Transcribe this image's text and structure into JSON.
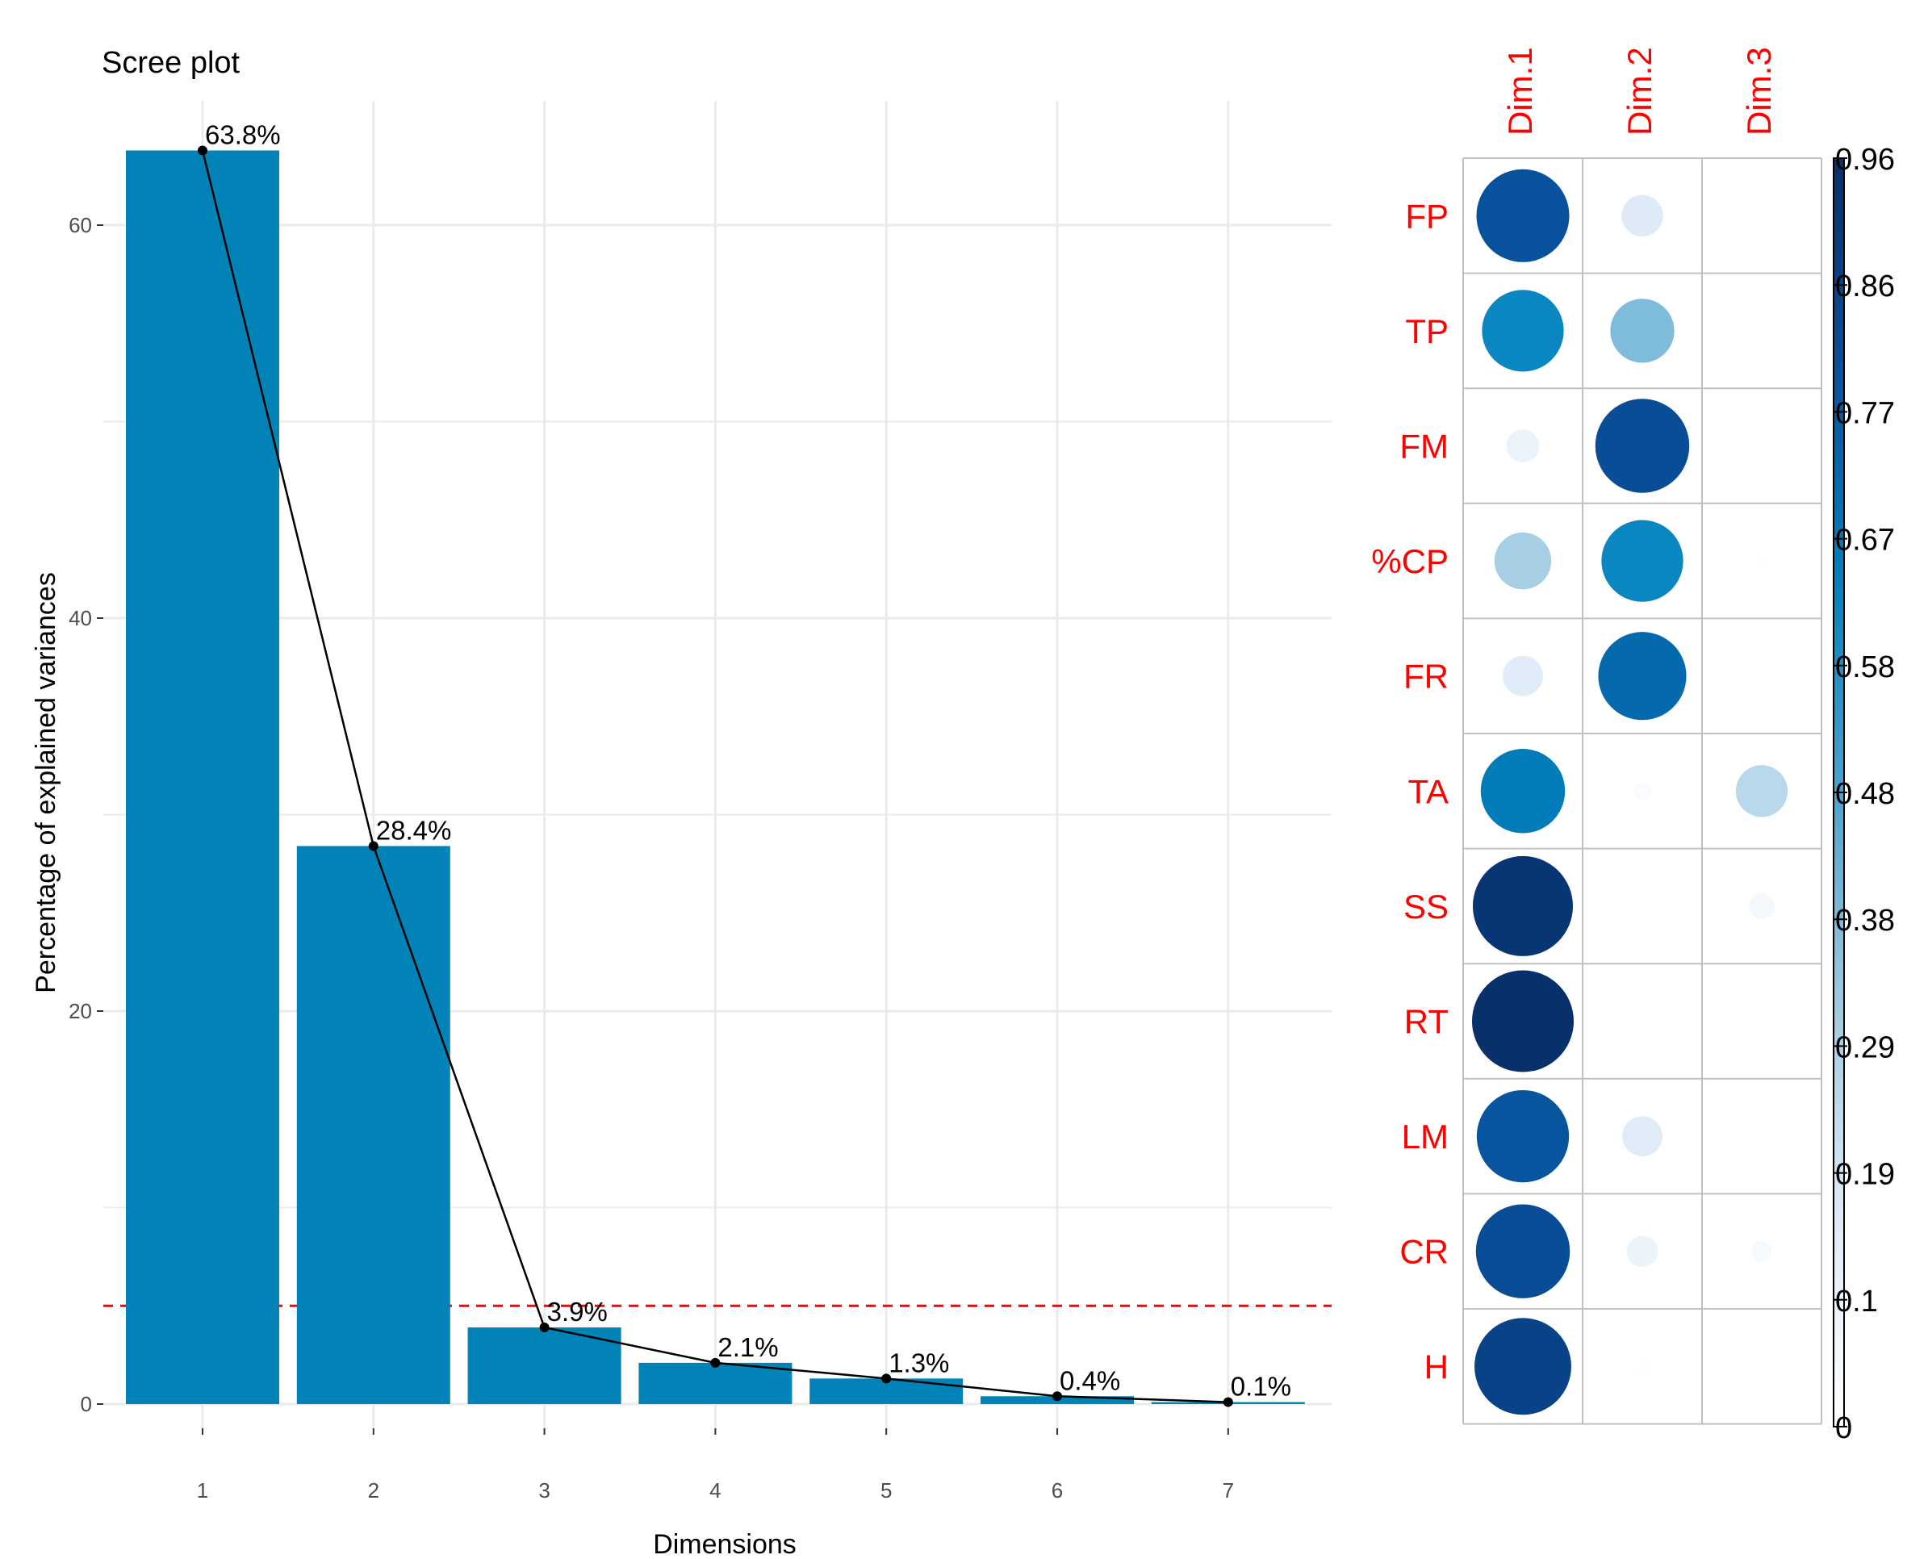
{
  "chart_data": [
    {
      "type": "bar",
      "title": "Scree plot",
      "xlabel": "Dimensions",
      "ylabel": "Percentage of explained variances",
      "categories": [
        "1",
        "2",
        "3",
        "4",
        "5",
        "6",
        "7"
      ],
      "values": [
        63.8,
        28.4,
        3.9,
        2.1,
        1.3,
        0.4,
        0.1
      ],
      "value_labels": [
        "63.8%",
        "28.4%",
        "3.9%",
        "2.1%",
        "1.3%",
        "0.4%",
        "0.1%"
      ],
      "line_overlay": true,
      "reference_line": 5,
      "ylim": [
        0,
        65
      ],
      "yticks": [
        0,
        20,
        40,
        60
      ],
      "grid": true,
      "colors": {
        "bar": "#0183b7",
        "line": "#000000",
        "reference": "#ff0000",
        "grid": "#ebebeb",
        "tick_text": "#4d4d4d"
      }
    },
    {
      "type": "heatmap",
      "subtype": "circle-correlogram",
      "columns": [
        "Dim.1",
        "Dim.2",
        "Dim.3"
      ],
      "rows": [
        "FP",
        "TP",
        "FM",
        "%CP",
        "FR",
        "TA",
        "SS",
        "RT",
        "LM",
        "CR",
        "H"
      ],
      "values": [
        [
          0.8,
          0.16,
          0.0
        ],
        [
          0.62,
          0.38,
          0.0
        ],
        [
          0.1,
          0.82,
          0.0
        ],
        [
          0.3,
          0.62,
          0.01
        ],
        [
          0.15,
          0.72,
          0.0
        ],
        [
          0.66,
          0.03,
          0.25
        ],
        [
          0.93,
          0.0,
          0.06
        ],
        [
          0.96,
          0.0,
          0.0
        ],
        [
          0.79,
          0.15,
          0.0
        ],
        [
          0.82,
          0.09,
          0.04
        ],
        [
          0.87,
          0.01,
          0.0
        ]
      ],
      "color_scale": {
        "min": 0,
        "max": 0.96,
        "tick_labels": [
          "0",
          "0.1",
          "0.19",
          "0.29",
          "0.38",
          "0.48",
          "0.58",
          "0.67",
          "0.77",
          "0.86",
          "0.96"
        ],
        "stops": [
          "#ffffff",
          "#deebf7",
          "#9ecae1",
          "#4ba3d1",
          "#0182bd",
          "#08519c",
          "#08306b"
        ]
      },
      "label_color": "#ff0000"
    }
  ]
}
